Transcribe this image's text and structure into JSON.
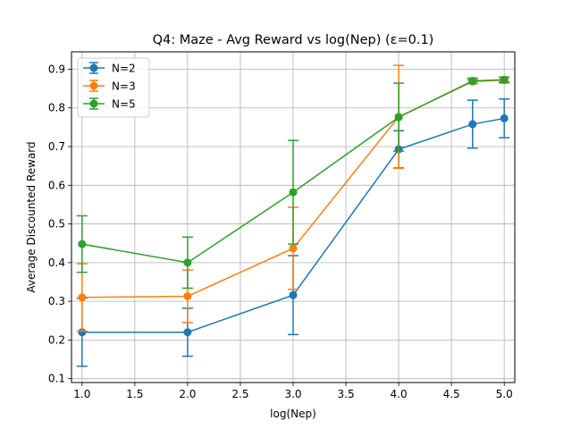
{
  "chart_data": {
    "type": "line",
    "title": "Q4: Maze - Avg Reward vs log(Nep) (ε=0.1)",
    "xlabel": "log(Nep)",
    "ylabel": "Average Discounted Reward",
    "xlim": [
      0.9,
      5.1
    ],
    "ylim": [
      0.09,
      0.945
    ],
    "xticks": [
      "1.0",
      "1.5",
      "2.0",
      "2.5",
      "3.0",
      "3.5",
      "4.0",
      "4.5",
      "5.0"
    ],
    "yticks": [
      "0.1",
      "0.2",
      "0.3",
      "0.4",
      "0.5",
      "0.6",
      "0.7",
      "0.8",
      "0.9"
    ],
    "grid": true,
    "legend_position": "top-left",
    "x": [
      1.0,
      2.0,
      3.0,
      4.0,
      4.7,
      5.0
    ],
    "series": [
      {
        "name": "N=2",
        "color": "#1f77b4",
        "values": [
          0.22,
          0.22,
          0.316,
          0.693,
          0.758,
          0.773
        ],
        "errors": [
          0.088,
          0.062,
          0.102,
          0.048,
          0.062,
          0.05
        ]
      },
      {
        "name": "N=3",
        "color": "#ff7f0e",
        "values": [
          0.31,
          0.313,
          0.437,
          0.777,
          0.868,
          0.872
        ],
        "errors": [
          0.087,
          0.068,
          0.106,
          0.133,
          0.005,
          0.008
        ]
      },
      {
        "name": "N=5",
        "color": "#2ca02c",
        "values": [
          0.448,
          0.4,
          0.582,
          0.776,
          0.87,
          0.873
        ],
        "errors": [
          0.073,
          0.066,
          0.134,
          0.088,
          0.007,
          0.006
        ]
      }
    ]
  }
}
